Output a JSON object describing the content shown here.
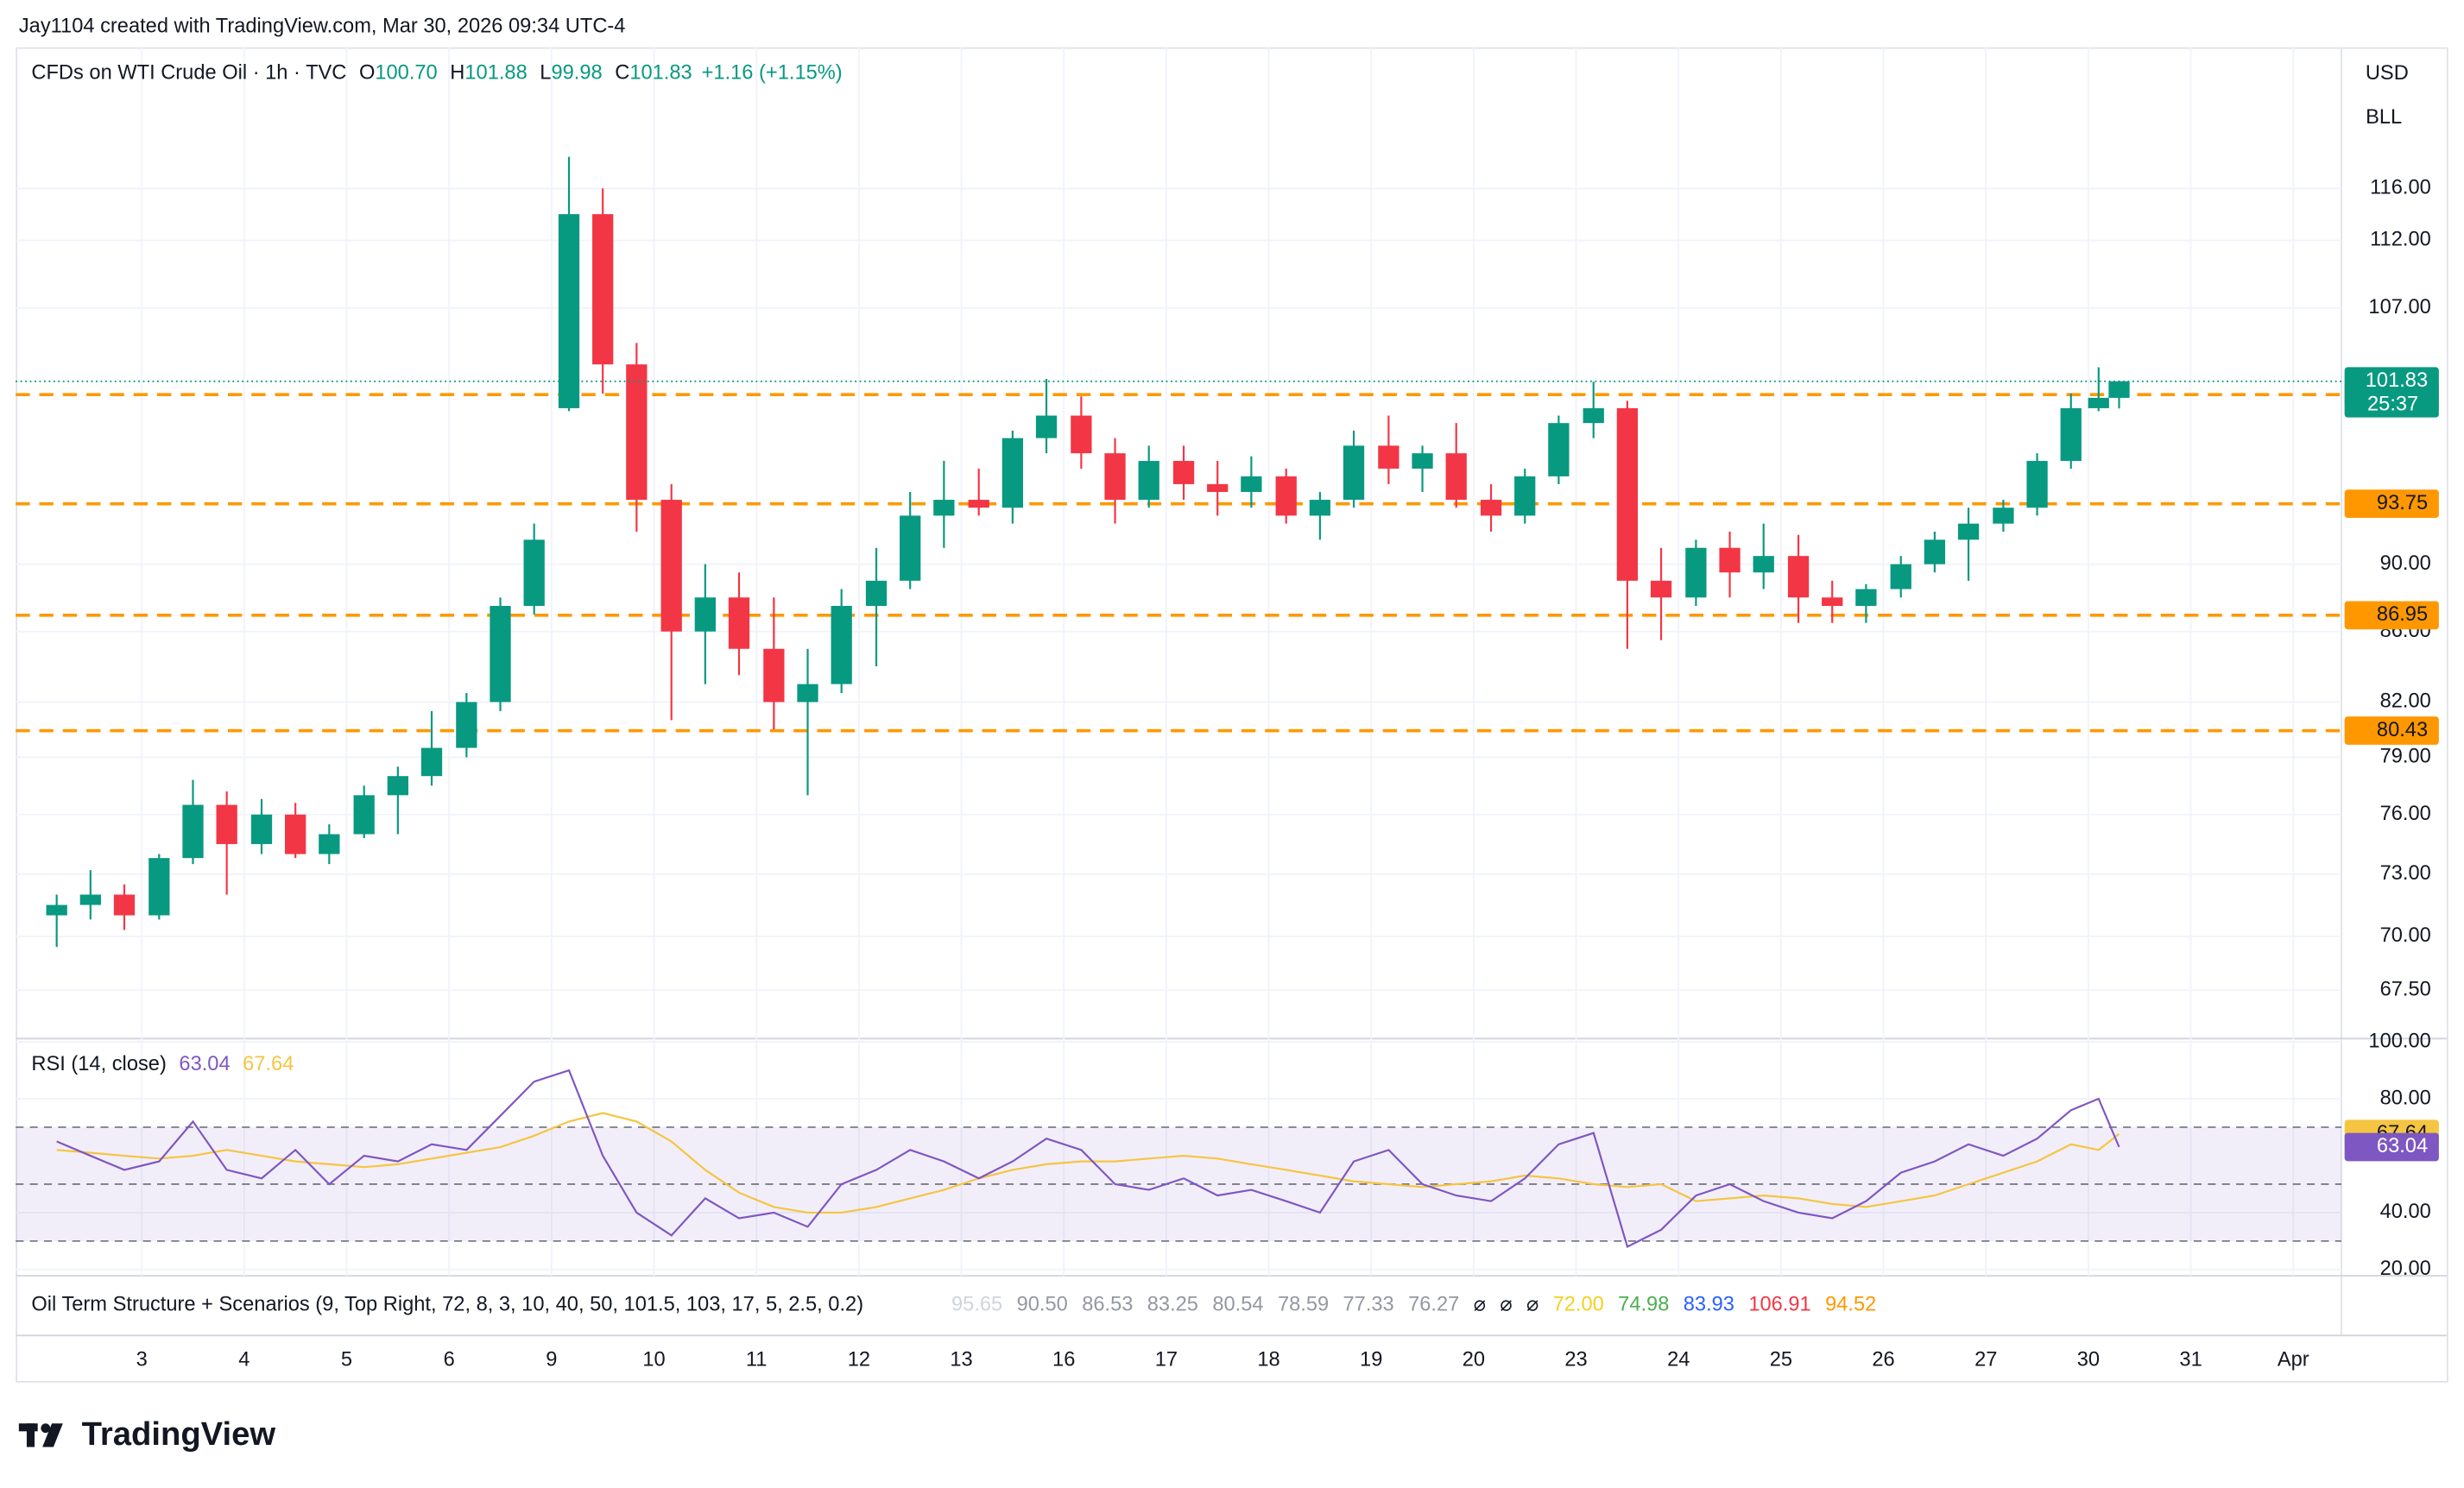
{
  "header": {
    "credit": "Jay1104 created with TradingView.com, Mar 30, 2026 09:34 UTC-4",
    "logo": "TradingView"
  },
  "chart_data": {
    "type": "candlestick",
    "title": "CFDs on WTI Crude Oil · 1h · TVC",
    "ohlc_header": [
      {
        "label": "O",
        "text": "100.70"
      },
      {
        "label": "H",
        "text": "101.88"
      },
      {
        "label": "L",
        "text": "99.98"
      },
      {
        "label": "C",
        "text": "101.83"
      }
    ],
    "change": "+1.16 (+1.15%)",
    "currency": "USD",
    "unit": "BLL",
    "x": [
      -0.83,
      -0.5,
      -0.17,
      0.17,
      0.5,
      0.83,
      1.17,
      1.5,
      1.83,
      2.17,
      2.5,
      2.83,
      3.17,
      3.5,
      3.83,
      4.17,
      4.5,
      4.83,
      5.17,
      5.5,
      5.83,
      6.17,
      6.5,
      6.83,
      7.17,
      7.5,
      7.83,
      8.17,
      8.5,
      8.83,
      9.17,
      9.5,
      9.83,
      10.17,
      10.5,
      10.83,
      11.17,
      11.5,
      11.83,
      12.17,
      12.5,
      12.83,
      13.17,
      13.5,
      13.83,
      14.17,
      14.5,
      14.83,
      15.17,
      15.5,
      15.83,
      16.17,
      16.5,
      16.83,
      17.17,
      17.5,
      17.83,
      18.17,
      18.5,
      18.83,
      19.1,
      19.3
    ],
    "open": [
      71,
      71.5,
      72,
      71,
      73.8,
      76.5,
      74.5,
      76,
      74,
      75,
      77,
      78,
      79.5,
      82,
      87.5,
      100,
      114,
      103,
      94,
      86,
      88,
      85,
      82,
      83,
      87.5,
      89,
      93,
      94,
      93.5,
      98,
      99.5,
      97,
      94,
      96.5,
      95,
      94.5,
      95.5,
      93,
      94,
      97.5,
      96,
      97,
      94,
      93,
      95.5,
      99,
      100,
      89,
      88,
      91,
      89.5,
      90.5,
      88,
      87.5,
      88.5,
      90,
      91.5,
      92.5,
      93.5,
      96.5,
      100,
      100.7
    ],
    "high": [
      72,
      73.2,
      72.5,
      74,
      77.8,
      77.2,
      76.8,
      76.6,
      75.5,
      77.5,
      78.5,
      81.5,
      82.5,
      88,
      92.5,
      118.5,
      116,
      104.5,
      95,
      90,
      89.5,
      88,
      85,
      88.5,
      91,
      94.5,
      96.5,
      96,
      98.5,
      102,
      100.8,
      98,
      97.5,
      97.5,
      96.5,
      96.8,
      96,
      94.5,
      98.5,
      99.5,
      97.5,
      99,
      95,
      96,
      99.5,
      101.8,
      100.5,
      91,
      91.5,
      92,
      92.5,
      91.8,
      89,
      88.8,
      90.5,
      92,
      93.5,
      94,
      97,
      101,
      102.8,
      101.88
    ],
    "low": [
      69.5,
      70.8,
      70.3,
      70.8,
      73.5,
      72,
      74,
      73.8,
      73.5,
      74.8,
      75,
      77.5,
      79,
      81.5,
      87,
      99.8,
      101,
      92,
      81,
      83,
      83.5,
      80.5,
      77,
      82.5,
      84,
      88.5,
      91,
      93,
      92.5,
      97,
      96,
      92.5,
      93.5,
      94,
      93,
      93.5,
      92.5,
      91.5,
      93.5,
      95,
      94.5,
      93.5,
      92,
      92.5,
      95,
      98,
      85,
      85.5,
      87.5,
      88,
      88.5,
      86.5,
      86.5,
      86.5,
      88,
      89.5,
      89,
      92,
      93,
      96,
      99.8,
      99.98
    ],
    "close": [
      71.5,
      72,
      71,
      73.8,
      76.5,
      74.5,
      76,
      74,
      75,
      77,
      78,
      79.5,
      82,
      87.5,
      91.5,
      114,
      103,
      94,
      86,
      88,
      85,
      82,
      83,
      87.5,
      89,
      93,
      94,
      93.5,
      98,
      99.5,
      97,
      94,
      96.5,
      95,
      94.5,
      95.5,
      93,
      94,
      97.5,
      96,
      97,
      94,
      93,
      95.5,
      99,
      100,
      89,
      88,
      91,
      89.5,
      90.5,
      88,
      87.5,
      88.5,
      90,
      91.5,
      92.5,
      93.5,
      96.5,
      100,
      100.7,
      101.83
    ],
    "up_color": "#089981",
    "down_color": "#f23645",
    "xlim": [
      -1.23,
      21.47
    ],
    "xticks": [
      {
        "value": 0,
        "label": "3"
      },
      {
        "value": 1,
        "label": "4"
      },
      {
        "value": 2,
        "label": "5"
      },
      {
        "value": 3,
        "label": "6"
      },
      {
        "value": 4,
        "label": "9"
      },
      {
        "value": 5,
        "label": "10"
      },
      {
        "value": 6,
        "label": "11"
      },
      {
        "value": 7,
        "label": "12"
      },
      {
        "value": 8,
        "label": "13"
      },
      {
        "value": 9,
        "label": "16"
      },
      {
        "value": 10,
        "label": "17"
      },
      {
        "value": 11,
        "label": "18"
      },
      {
        "value": 12,
        "label": "19"
      },
      {
        "value": 13,
        "label": "20"
      },
      {
        "value": 14,
        "label": "23"
      },
      {
        "value": 15,
        "label": "24"
      },
      {
        "value": 16,
        "label": "25"
      },
      {
        "value": 17,
        "label": "26"
      },
      {
        "value": 18,
        "label": "27"
      },
      {
        "value": 19,
        "label": "30"
      },
      {
        "value": 20,
        "label": "31"
      },
      {
        "value": 21,
        "label": "Apr"
      }
    ],
    "ylim": [
      65.4,
      127.6
    ],
    "log_scale": true,
    "yticks": [
      {
        "value": 67.5,
        "label": "67.50"
      },
      {
        "value": 70,
        "label": "70.00"
      },
      {
        "value": 73,
        "label": "73.00"
      },
      {
        "value": 76,
        "label": "76.00"
      },
      {
        "value": 79,
        "label": "79.00"
      },
      {
        "value": 82,
        "label": "82.00"
      },
      {
        "value": 86,
        "label": "86.00"
      },
      {
        "value": 90,
        "label": "90.00"
      },
      {
        "value": 107,
        "label": "107.00"
      },
      {
        "value": 112,
        "label": "112.00"
      },
      {
        "value": 116,
        "label": "116.00"
      }
    ],
    "grid": true,
    "countdown": "25:37",
    "levels": [
      100.92,
      93.75,
      86.95,
      80.43
    ],
    "level_color": "#ff9800",
    "rsi": {
      "title": "RSI (14, close)",
      "color": "#7e57c2",
      "ma_color": "#f5c542",
      "values": [
        65,
        60,
        55,
        58,
        72,
        55,
        52,
        62,
        50,
        60,
        58,
        64,
        62,
        74,
        86,
        90,
        60,
        40,
        32,
        45,
        38,
        40,
        35,
        50,
        55,
        62,
        58,
        52,
        58,
        66,
        62,
        50,
        48,
        52,
        46,
        48,
        44,
        40,
        58,
        62,
        50,
        46,
        44,
        52,
        64,
        68,
        28,
        34,
        46,
        50,
        44,
        40,
        38,
        44,
        54,
        58,
        64,
        60,
        66,
        76,
        80,
        63.04
      ],
      "ma": [
        62,
        61,
        60,
        59,
        60,
        62,
        60,
        58,
        57,
        56,
        57,
        59,
        61,
        63,
        67,
        72,
        75,
        72,
        65,
        55,
        47,
        42,
        40,
        40,
        42,
        45,
        48,
        52,
        55,
        57,
        58,
        58,
        59,
        60,
        59,
        57,
        55,
        53,
        51,
        50,
        49,
        50,
        51,
        53,
        52,
        50,
        49,
        50,
        44,
        45,
        46,
        45,
        43,
        42,
        44,
        46,
        50,
        54,
        58,
        64,
        62,
        67.64
      ],
      "ylim": [
        17.8,
        100.6
      ],
      "yticks": [
        {
          "value": 100,
          "label": "100.00"
        },
        {
          "value": 80,
          "label": "80.00"
        },
        {
          "value": 40,
          "label": "40.00"
        },
        {
          "value": 20,
          "label": "20.00"
        }
      ],
      "band_levels": [
        70,
        50,
        30
      ]
    },
    "indicator": {
      "title": "Oil Term Structure + Scenarios (9, Top Right, 72, 8, 3, 10, 40, 50, 101.5, 103, 17, 5, 2.5, 0.2)",
      "items": [
        {
          "text": "95.65",
          "color": "#d1d4dc"
        },
        {
          "text": "90.50",
          "color": "#9598a1"
        },
        {
          "text": "86.53",
          "color": "#9598a1"
        },
        {
          "text": "83.25",
          "color": "#9598a1"
        },
        {
          "text": "80.54",
          "color": "#9598a1"
        },
        {
          "text": "78.59",
          "color": "#9598a1"
        },
        {
          "text": "77.33",
          "color": "#9598a1"
        },
        {
          "text": "76.27",
          "color": "#9598a1"
        },
        {
          "text": "⌀",
          "color": "#131722"
        },
        {
          "text": "⌀",
          "color": "#131722"
        },
        {
          "text": "⌀",
          "color": "#131722"
        },
        {
          "text": "72.00",
          "color": "#f5d020"
        },
        {
          "text": "74.98",
          "color": "#4caf50"
        },
        {
          "text": "83.93",
          "color": "#2962ff"
        },
        {
          "text": "106.91",
          "color": "#f23645"
        },
        {
          "text": "94.52",
          "color": "#ff9800"
        }
      ]
    }
  }
}
